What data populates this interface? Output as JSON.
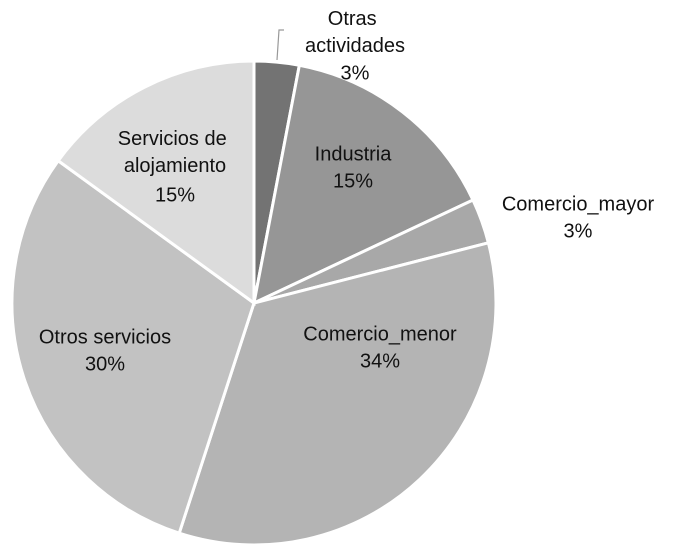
{
  "chart_data": {
    "type": "pie",
    "categories": [
      "Otras actividades",
      "Industria",
      "Comercio_mayor",
      "Comercio_menor",
      "Otros servicios",
      "Servicios de alojamiento"
    ],
    "values": [
      3,
      15,
      3,
      34,
      30,
      15
    ],
    "value_labels": [
      "3%",
      "15%",
      "3%",
      "34%",
      "30%",
      "15%"
    ],
    "colors": [
      "#737373",
      "#969696",
      "#a8a8a8",
      "#b4b4b4",
      "#c2c2c2",
      "#dcdcdc"
    ]
  }
}
